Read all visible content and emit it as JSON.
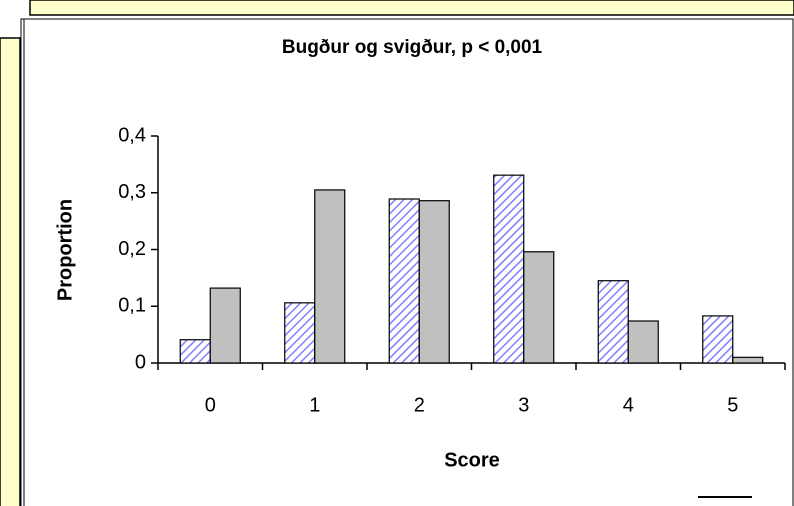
{
  "chart_data": {
    "type": "bar",
    "title": "Bugður og svigður, p < 0,001",
    "x_label": "Score",
    "y_label": "Proportion",
    "categories": [
      "0",
      "1",
      "2",
      "3",
      "4",
      "5"
    ],
    "series": [
      {
        "color": "#8080ff",
        "hatch": true,
        "values": [
          0.041,
          0.106,
          0.289,
          0.331,
          0.145,
          0.083
        ]
      },
      {
        "color": "#c0c0c0",
        "hatch": false,
        "values": [
          0.132,
          0.305,
          0.286,
          0.196,
          0.074,
          0.01
        ]
      }
    ],
    "ylim": [
      0,
      0.4
    ],
    "yticks": [
      0,
      {
        "value": 0.1,
        "label": "0,1"
      },
      {
        "value": 0.2,
        "label": "0,2"
      },
      {
        "value": 0.3,
        "label": "0,3"
      },
      {
        "value": 0.4,
        "label": "0,4"
      }
    ],
    "grid": false
  }
}
